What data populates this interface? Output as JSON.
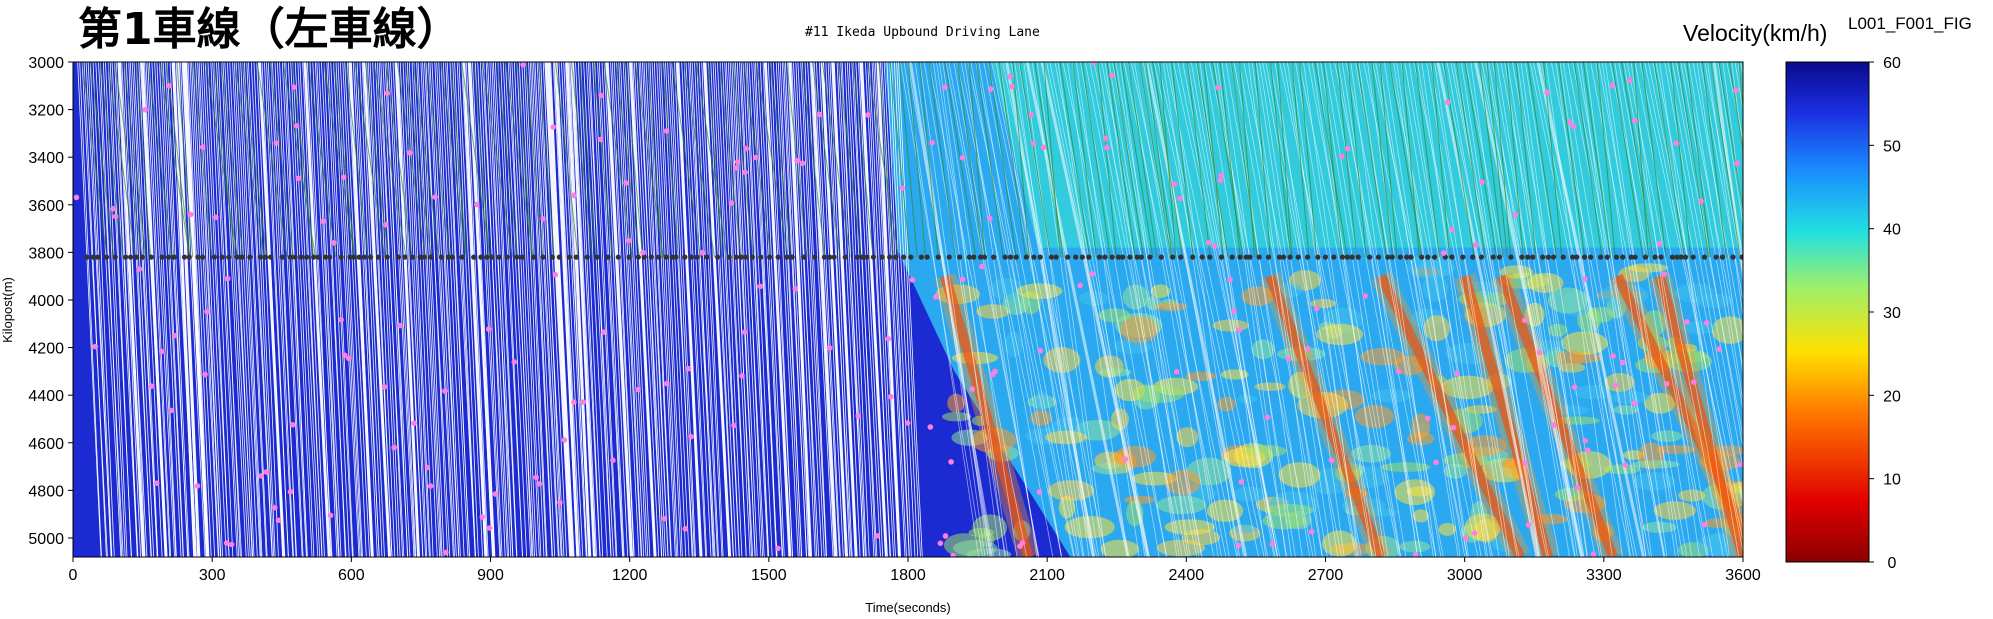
{
  "header": {
    "title": "第1車線（左車線）",
    "subtitle": "#11 Ikeda Upbound Driving Lane",
    "figure_id": "L001_F001_FIG"
  },
  "chart_data": {
    "type": "heatmap",
    "title": "#11 Ikeda Upbound Driving Lane",
    "xlabel": "Time(seconds)",
    "ylabel": "Kilopost(m)",
    "xlim": [
      0,
      3600
    ],
    "ylim": [
      3000,
      5080
    ],
    "y_inverted": true,
    "x_ticks": [
      0,
      300,
      600,
      900,
      1200,
      1500,
      1800,
      2100,
      2400,
      2700,
      3000,
      3300,
      3600
    ],
    "y_ticks": [
      3000,
      3200,
      3400,
      3600,
      3800,
      4000,
      4200,
      4400,
      4600,
      4800,
      5000
    ],
    "colorbar": {
      "label": "Velocity(km/h)",
      "range": [
        0,
        60
      ],
      "ticks": [
        0,
        10,
        20,
        30,
        40,
        50,
        60
      ],
      "colormap": "jet-reversed"
    },
    "free_flow_until_s": 1780,
    "detector_kilopost_m": 3820,
    "congestion_wave_starts_s": [
      1880,
      2580,
      2820,
      3000,
      3080,
      3330,
      3420
    ],
    "colors": {
      "fast": "#1c2ad2",
      "slow": "#c00000",
      "trajectory_line": "#ffffff",
      "green_track": "#2e8b2e",
      "event_marker": "#ff7fe0",
      "detector_marker": "#333333"
    }
  }
}
